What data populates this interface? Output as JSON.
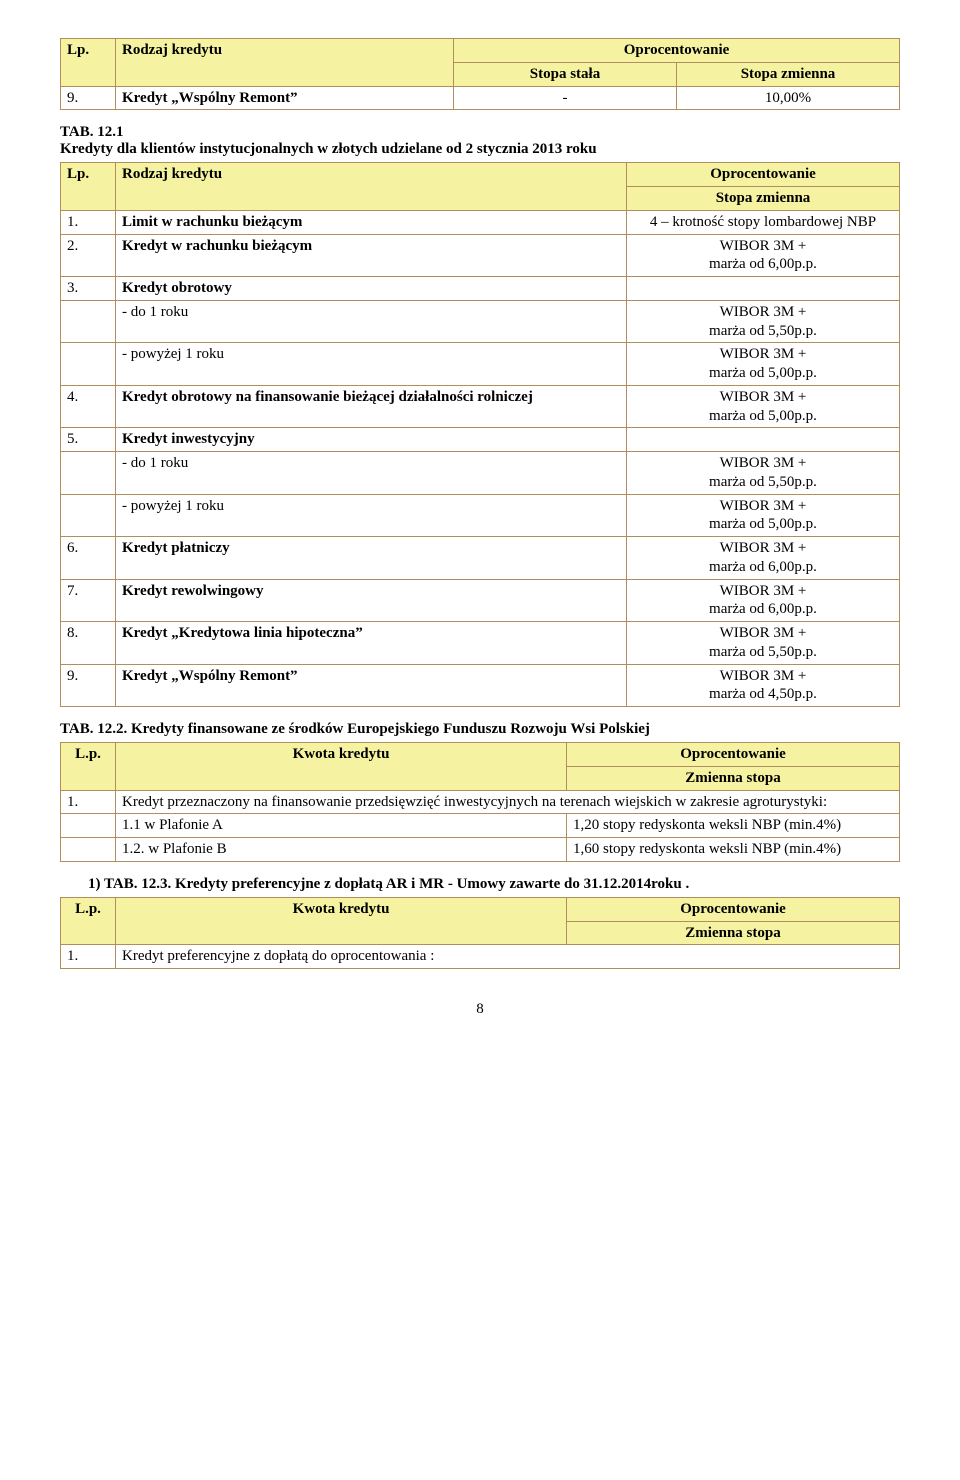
{
  "topTable": {
    "headers": {
      "lp": "Lp.",
      "rodzaj": "Rodzaj kredytu",
      "opro": "Oprocentowanie",
      "stala": "Stopa stała",
      "zmienna": "Stopa zmienna"
    },
    "row": {
      "lp": "9.",
      "name": "Kredyt „Wspólny Remont”",
      "stala": "-",
      "zmienna": "10,00%"
    }
  },
  "tab121": {
    "caption_a": "TAB. 12.1",
    "caption_b": "Kredyty dla klientów instytucjonalnych w złotych udzielane od  2 stycznia 2013 roku",
    "headers": {
      "lp": "Lp.",
      "rodzaj": "Rodzaj kredytu",
      "opro": "Oprocentowanie",
      "zmienna": "Stopa zmienna"
    },
    "rows": [
      {
        "lp": "1.",
        "name": "Limit w rachunku bieżącym",
        "rate": "4 – krotność stopy lombardowej NBP",
        "bold": true
      },
      {
        "lp": "2.",
        "name": "Kredyt w rachunku bieżącym",
        "rate": "WIBOR 3M +\nmarża od 6,00p.p.",
        "bold": true
      },
      {
        "lp": "3.",
        "name": "Kredyt obrotowy",
        "rate": "",
        "bold": true
      },
      {
        "lp": "",
        "name": "- do 1 roku",
        "rate": "WIBOR 3M +\nmarża od 5,50p.p.",
        "bold": false
      },
      {
        "lp": "",
        "name": "- powyżej 1 roku",
        "rate": "WIBOR 3M +\nmarża od 5,00p.p.",
        "bold": false
      },
      {
        "lp": "4.",
        "name": "Kredyt obrotowy na finansowanie bieżącej działalności rolniczej",
        "rate": "WIBOR 3M +\nmarża od 5,00p.p.",
        "bold": true
      },
      {
        "lp": "5.",
        "name": "Kredyt inwestycyjny",
        "rate": "",
        "bold": true
      },
      {
        "lp": "",
        "name": "- do 1 roku",
        "rate": "WIBOR 3M +\nmarża od 5,50p.p.",
        "bold": false
      },
      {
        "lp": "",
        "name": "- powyżej 1 roku",
        "rate": "WIBOR 3M +\nmarża od 5,00p.p.",
        "bold": false
      },
      {
        "lp": "6.",
        "name": "Kredyt płatniczy",
        "rate": "WIBOR 3M +\nmarża od 6,00p.p.",
        "bold": true
      },
      {
        "lp": "7.",
        "name": "Kredyt rewolwingowy",
        "rate": "WIBOR 3M +\nmarża od 6,00p.p.",
        "bold": true
      },
      {
        "lp": "8.",
        "name": "Kredyt „Kredytowa linia hipoteczna”",
        "rate": "WIBOR 3M +\nmarża od 5,50p.p.",
        "bold": true
      },
      {
        "lp": "9.",
        "name": "Kredyt „Wspólny Remont”",
        "rate": "WIBOR 3M +\nmarża od 4,50p.p.",
        "bold": true
      }
    ]
  },
  "tab122": {
    "caption": "TAB. 12.2. Kredyty finansowane ze środków Europejskiego Funduszu Rozwoju Wsi Polskiej",
    "headers": {
      "lp": "L.p.",
      "kwota": "Kwota kredytu",
      "opro": "Oprocentowanie",
      "zmienna": "Zmienna stopa"
    },
    "rows": [
      {
        "lp": "1.",
        "name": "Kredyt przeznaczony na finansowanie przedsięwzięć inwestycyjnych na terenach wiejskich w zakresie agroturystyki:",
        "rate": "",
        "span": true
      },
      {
        "lp": "",
        "name": "1.1 w Plafonie A",
        "rate": "1,20 stopy redyskonta weksli NBP (min.4%)",
        "span": false
      },
      {
        "lp": "",
        "name": "1.2. w Plafonie B",
        "rate": "1,60 stopy redyskonta weksli NBP (min.4%)",
        "span": false
      }
    ]
  },
  "tab123": {
    "caption": "1) TAB.  12.3.  Kredyty  preferencyjne  z  dopłatą  AR  i  MR  -  Umowy  zawarte  do 31.12.2014roku .",
    "headers": {
      "lp": "L.p.",
      "kwota": "Kwota kredytu",
      "opro": "Oprocentowanie",
      "zmienna": "Zmienna stopa"
    },
    "row": {
      "lp": "1.",
      "name": "Kredyt preferencyjne z dopłatą do oprocentowania :"
    }
  },
  "pagenum": "8"
}
